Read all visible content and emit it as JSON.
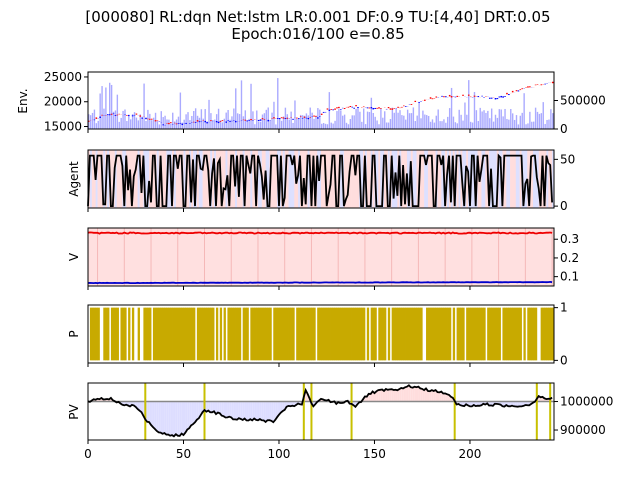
{
  "title_line1": "[000080] RL:dqn Net:lstm LR:0.001 DF:0.9 TU:[4,40] DRT:0.05",
  "title_line2": "Epoch:016/100 e=0.85",
  "colors": {
    "price_up": "#ff0000",
    "price_down": "#0000ff",
    "volume": "#aaaaff",
    "agent_line": "#000000",
    "agent_bg_a": "#ffdddd",
    "agent_bg_b": "#dde0ff",
    "v_red": "#ee0000",
    "v_blue": "#0000cc",
    "v_bg": "#ffe0e0",
    "p_fill": "#c8aa00",
    "pv_line": "#000000",
    "pv_base": "#888888",
    "pv_above": "#ffdddd",
    "pv_below": "#ddddff",
    "pv_vlines": "#c8c000"
  },
  "chart_data": [
    {
      "type": "line",
      "ylabel": "Env.",
      "xlim": [
        0,
        244
      ],
      "ylim": [
        14500,
        26000
      ],
      "yticks": [
        "25000",
        "20000",
        "15000"
      ],
      "y2lim": [
        0,
        1000000
      ],
      "y2ticks": [
        "500000",
        "0"
      ],
      "price_keypoints": [
        [
          0,
          16000
        ],
        [
          10,
          17500
        ],
        [
          25,
          17300
        ],
        [
          40,
          15500
        ],
        [
          60,
          16000
        ],
        [
          90,
          16300
        ],
        [
          120,
          17000
        ],
        [
          125,
          18300
        ],
        [
          140,
          19000
        ],
        [
          150,
          18800
        ],
        [
          160,
          18500
        ],
        [
          175,
          20200
        ],
        [
          185,
          21000
        ],
        [
          200,
          21100
        ],
        [
          215,
          20900
        ],
        [
          230,
          22800
        ],
        [
          244,
          24000
        ]
      ],
      "volume_note": "daily volume bars, mostly 100000–400000 with spikes near 900000"
    },
    {
      "type": "line",
      "ylabel": "Agent",
      "xlim": [
        0,
        244
      ],
      "ylim": [
        -2,
        60
      ],
      "yticks": [
        "50",
        "0"
      ],
      "range": [
        0,
        54
      ]
    },
    {
      "type": "line",
      "ylabel": "V",
      "xlim": [
        0,
        244
      ],
      "ylim": [
        0.05,
        0.36
      ],
      "yticks": [
        "0.3",
        "0.2",
        "0.1"
      ],
      "series": [
        {
          "values_range": [
            0.328,
            0.342
          ]
        },
        {
          "values_range": [
            0.062,
            0.075
          ]
        }
      ]
    },
    {
      "type": "bar",
      "ylabel": "P",
      "xlim": [
        0,
        244
      ],
      "ylim": [
        -0.05,
        1.05
      ],
      "yticks": [
        "1",
        "0"
      ],
      "zero_steps": [
        0,
        6,
        7,
        11,
        16,
        20,
        22,
        24,
        25,
        27,
        28,
        33,
        56,
        66,
        68,
        70,
        72,
        80,
        84,
        96,
        108,
        119,
        145,
        147,
        151,
        156,
        158,
        175,
        176,
        190,
        192,
        197,
        208,
        216,
        227,
        229,
        235,
        236
      ]
    },
    {
      "type": "line",
      "ylabel": "PV",
      "xlim": [
        0,
        244
      ],
      "ylim": [
        865000,
        1065000
      ],
      "yticks": [
        "1000000",
        "900000"
      ],
      "baseline": 1000000,
      "vlines": [
        30,
        61,
        113,
        117,
        138,
        192,
        235,
        242
      ],
      "keypoints": [
        [
          0,
          1000000
        ],
        [
          5,
          1010000
        ],
        [
          12,
          1010000
        ],
        [
          18,
          990000
        ],
        [
          25,
          985000
        ],
        [
          30,
          940000
        ],
        [
          35,
          900000
        ],
        [
          42,
          880000
        ],
        [
          50,
          885000
        ],
        [
          55,
          920000
        ],
        [
          61,
          970000
        ],
        [
          65,
          965000
        ],
        [
          75,
          940000
        ],
        [
          90,
          935000
        ],
        [
          97,
          930000
        ],
        [
          100,
          950000
        ],
        [
          105,
          985000
        ],
        [
          112,
          990000
        ],
        [
          114,
          1040000
        ],
        [
          118,
          980000
        ],
        [
          122,
          1010000
        ],
        [
          130,
          995000
        ],
        [
          136,
          1000000
        ],
        [
          140,
          985000
        ],
        [
          148,
          1030000
        ],
        [
          155,
          1040000
        ],
        [
          163,
          1040000
        ],
        [
          168,
          1055000
        ],
        [
          175,
          1045000
        ],
        [
          183,
          1035000
        ],
        [
          190,
          1020000
        ],
        [
          193,
          990000
        ],
        [
          200,
          985000
        ],
        [
          210,
          990000
        ],
        [
          220,
          985000
        ],
        [
          228,
          985000
        ],
        [
          233,
          995000
        ],
        [
          236,
          1020000
        ],
        [
          240,
          1010000
        ],
        [
          244,
          1010000
        ]
      ],
      "x_ticks": [
        "0",
        "50",
        "100",
        "150",
        "200"
      ]
    }
  ]
}
